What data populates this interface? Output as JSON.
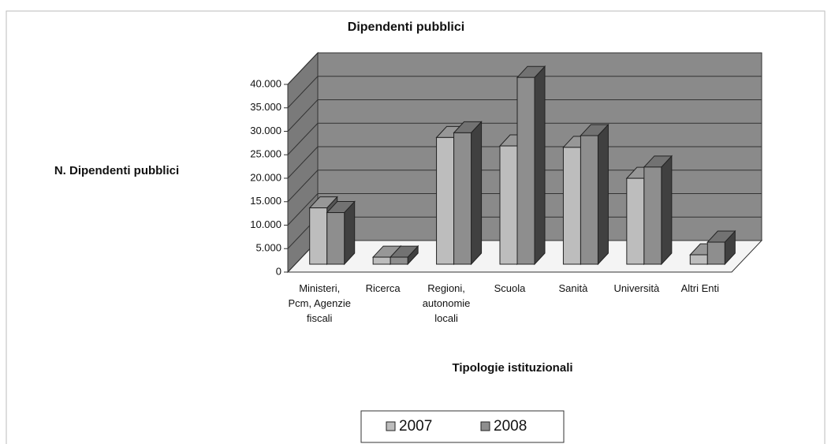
{
  "chart_data": {
    "type": "bar3d",
    "title": "Dipendenti pubblici",
    "ylabel": "N. Dipendenti pubblici",
    "xlabel": "Tipologie istituzionali",
    "categories": [
      "Ministeri, Pcm, Agenzie fiscali",
      "Ricerca",
      "Regioni, autonomie locali",
      "Scuola",
      "Sanità",
      "Università",
      "Altri Enti"
    ],
    "series": [
      {
        "name": "2007",
        "color": "#bdbdbd",
        "values": [
          12000,
          1500,
          27000,
          25200,
          24900,
          18300,
          2000
        ]
      },
      {
        "name": "2008",
        "color": "#8e8e8e",
        "values": [
          11000,
          1500,
          28000,
          39800,
          27400,
          20700,
          4700
        ]
      }
    ],
    "ylim": [
      0,
      40000
    ],
    "yticks": [
      0,
      {
        "value": 5000,
        "label": "5.000"
      },
      {
        "value": 10000,
        "label": "10.000"
      },
      {
        "value": 15000,
        "label": "15.000"
      },
      {
        "value": 20000,
        "label": "20.000"
      },
      {
        "value": 25000,
        "label": "25.000"
      },
      {
        "value": 30000,
        "label": "30.000"
      },
      {
        "value": 35000,
        "label": "35.000"
      },
      {
        "value": 40000,
        "label": "40.000"
      }
    ],
    "grid": true,
    "legend": "bottom"
  }
}
